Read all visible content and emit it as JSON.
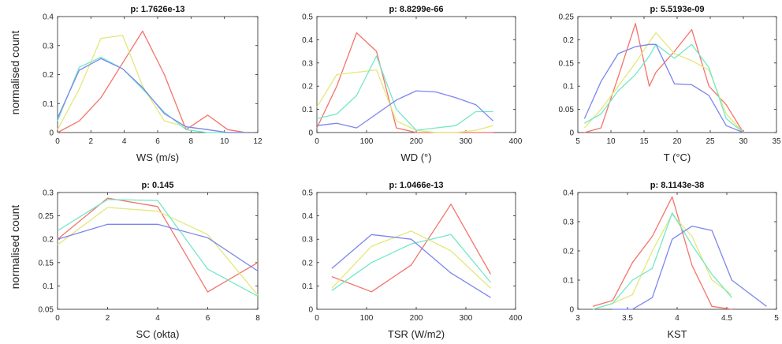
{
  "figure": {
    "ylabel": "normalised count"
  },
  "series_colors": [
    "#f4736a",
    "#e3e87a",
    "#72e8c8",
    "#7c86ee"
  ],
  "chart_data": [
    {
      "type": "line",
      "title": "p: 1.7626e-13",
      "xlabel": "WS (m/s)",
      "ylabel": "normalised count",
      "xlim": [
        0,
        12
      ],
      "ylim": [
        0,
        0.4
      ],
      "xticks": [
        0,
        2,
        4,
        6,
        8,
        10,
        12
      ],
      "yticks": [
        0,
        0.1,
        0.2,
        0.3,
        0.4
      ],
      "xtick_labels": [
        "0",
        "2",
        "4",
        "6",
        "8",
        "10",
        "12"
      ],
      "ytick_labels": [
        "0",
        "0.1",
        "0.2",
        "0.3",
        "0.4"
      ],
      "series": [
        {
          "x": [
            0,
            1.3,
            2.6,
            3.9,
            5.1,
            6.4,
            7.7,
            9.0,
            10.2,
            11.3
          ],
          "values": [
            0.0,
            0.04,
            0.12,
            0.24,
            0.35,
            0.2,
            0.01,
            0.06,
            0.01,
            0.0
          ]
        },
        {
          "x": [
            0,
            1.3,
            2.6,
            3.9,
            5.1,
            6.4,
            7.7,
            9.0,
            10.2,
            11.3
          ],
          "values": [
            0.01,
            0.15,
            0.325,
            0.335,
            0.16,
            0.04,
            0.02,
            0.01,
            0.0,
            0.0
          ]
        },
        {
          "x": [
            0,
            1.3,
            2.6,
            3.9,
            5.1,
            6.4,
            7.7,
            9.0,
            10.2,
            11.3
          ],
          "values": [
            0.04,
            0.225,
            0.26,
            0.22,
            0.15,
            0.07,
            0.01,
            0.0,
            0.0,
            0.0
          ]
        },
        {
          "x": [
            0,
            1.3,
            2.6,
            3.9,
            5.1,
            6.4,
            7.7,
            9.0,
            10.2,
            11.3
          ],
          "values": [
            0.05,
            0.215,
            0.255,
            0.22,
            0.155,
            0.065,
            0.02,
            0.01,
            0.0,
            0.0
          ]
        }
      ]
    },
    {
      "type": "line",
      "title": "p: 8.8299e-66",
      "xlabel": "WD (°)",
      "ylabel": "",
      "xlim": [
        0,
        400
      ],
      "ylim": [
        0,
        0.5
      ],
      "xticks": [
        0,
        100,
        200,
        300,
        400
      ],
      "yticks": [
        0,
        0.1,
        0.2,
        0.3,
        0.4,
        0.5
      ],
      "xtick_labels": [
        "0",
        "100",
        "200",
        "300",
        "400"
      ],
      "ytick_labels": [
        "0",
        "0.1",
        "0.2",
        "0.3",
        "0.4",
        "0.5"
      ],
      "series": [
        {
          "x": [
            0,
            40,
            80,
            120,
            160,
            200,
            240,
            280,
            320,
            355
          ],
          "values": [
            0.02,
            0.2,
            0.43,
            0.35,
            0.02,
            0.0,
            0.0,
            0.0,
            0.0,
            0.0
          ]
        },
        {
          "x": [
            0,
            40,
            80,
            120,
            160,
            200,
            240,
            280,
            320,
            355
          ],
          "values": [
            0.11,
            0.25,
            0.26,
            0.27,
            0.05,
            0.01,
            0.0,
            0.0,
            0.01,
            0.03
          ]
        },
        {
          "x": [
            0,
            40,
            80,
            120,
            160,
            200,
            240,
            280,
            320,
            355
          ],
          "values": [
            0.06,
            0.08,
            0.16,
            0.33,
            0.1,
            0.01,
            0.02,
            0.03,
            0.09,
            0.09
          ]
        },
        {
          "x": [
            0,
            40,
            80,
            120,
            160,
            200,
            240,
            280,
            320,
            355
          ],
          "values": [
            0.03,
            0.04,
            0.02,
            0.08,
            0.14,
            0.18,
            0.175,
            0.15,
            0.12,
            0.05
          ]
        }
      ]
    },
    {
      "type": "line",
      "title": "p: 5.5193e-09",
      "xlabel": "T (°C)",
      "ylabel": "",
      "xlim": [
        5,
        35
      ],
      "ylim": [
        0,
        0.25
      ],
      "xticks": [
        5,
        10,
        15,
        20,
        25,
        30,
        35
      ],
      "yticks": [
        0,
        0.05,
        0.1,
        0.15,
        0.2,
        0.25
      ],
      "xtick_labels": [
        "5",
        "10",
        "15",
        "20",
        "25",
        "30",
        "35"
      ],
      "ytick_labels": [
        "0",
        "0.05",
        "0.1",
        "0.15",
        "0.2",
        "0.25"
      ],
      "series": [
        {
          "x": [
            6.0,
            8.5,
            11.1,
            13.7,
            15.8,
            16.8,
            19.6,
            22.2,
            24.8,
            27.4,
            30.0
          ],
          "values": [
            0.0,
            0.01,
            0.12,
            0.235,
            0.1,
            0.13,
            0.175,
            0.222,
            0.1,
            0.06,
            0.0
          ]
        },
        {
          "x": [
            6.0,
            8.5,
            11.1,
            13.7,
            15.8,
            16.8,
            19.6,
            22.2,
            24.8,
            27.4,
            30.0
          ],
          "values": [
            0.01,
            0.05,
            0.1,
            0.15,
            0.195,
            0.215,
            0.17,
            0.155,
            0.135,
            0.04,
            0.0
          ]
        },
        {
          "x": [
            6.0,
            8.5,
            11.1,
            13.7,
            15.8,
            16.8,
            19.6,
            22.2,
            24.8,
            27.4,
            30.0
          ],
          "values": [
            0.02,
            0.04,
            0.09,
            0.125,
            0.165,
            0.19,
            0.16,
            0.19,
            0.14,
            0.03,
            0.0
          ]
        },
        {
          "x": [
            6.0,
            8.5,
            11.1,
            13.7,
            15.8,
            16.8,
            19.6,
            22.2,
            24.8,
            27.4,
            30.0
          ],
          "values": [
            0.03,
            0.11,
            0.17,
            0.185,
            0.19,
            0.19,
            0.105,
            0.103,
            0.08,
            0.015,
            0.0
          ]
        }
      ]
    },
    {
      "type": "line",
      "title": "p: 0.145",
      "xlabel": "SC (okta)",
      "ylabel": "normalised count",
      "xlim": [
        0,
        8
      ],
      "ylim": [
        0.05,
        0.3
      ],
      "xticks": [
        0,
        2,
        4,
        6,
        8
      ],
      "yticks": [
        0.05,
        0.1,
        0.15,
        0.2,
        0.25,
        0.3
      ],
      "xtick_labels": [
        "0",
        "2",
        "4",
        "6",
        "8"
      ],
      "ytick_labels": [
        "0.05",
        "0.1",
        "0.15",
        "0.2",
        "0.25",
        "0.3"
      ],
      "series": [
        {
          "x": [
            0,
            2,
            4,
            6,
            8
          ],
          "values": [
            0.2,
            0.288,
            0.27,
            0.087,
            0.15
          ]
        },
        {
          "x": [
            0,
            2,
            4,
            6,
            8
          ],
          "values": [
            0.188,
            0.268,
            0.26,
            0.21,
            0.08
          ]
        },
        {
          "x": [
            0,
            2,
            4,
            6,
            8
          ],
          "values": [
            0.218,
            0.285,
            0.283,
            0.136,
            0.078
          ]
        },
        {
          "x": [
            0,
            2,
            4,
            6,
            8
          ],
          "values": [
            0.2,
            0.232,
            0.232,
            0.203,
            0.132
          ]
        }
      ]
    },
    {
      "type": "line",
      "title": "p: 1.0466e-13",
      "xlabel": "TSR (W/m2)",
      "ylabel": "",
      "xlim": [
        0,
        400
      ],
      "ylim": [
        0,
        0.5
      ],
      "xticks": [
        0,
        100,
        200,
        300,
        400
      ],
      "yticks": [
        0,
        0.1,
        0.2,
        0.3,
        0.4,
        0.5
      ],
      "xtick_labels": [
        "0",
        "100",
        "200",
        "300",
        "400"
      ],
      "ytick_labels": [
        "0",
        "0.1",
        "0.2",
        "0.3",
        "0.4",
        "0.5"
      ],
      "series": [
        {
          "x": [
            30,
            110,
            190,
            270,
            350
          ],
          "values": [
            0.14,
            0.075,
            0.19,
            0.45,
            0.15
          ]
        },
        {
          "x": [
            30,
            110,
            190,
            270,
            350
          ],
          "values": [
            0.09,
            0.27,
            0.335,
            0.25,
            0.09
          ]
        },
        {
          "x": [
            30,
            110,
            190,
            270,
            350
          ],
          "values": [
            0.08,
            0.2,
            0.28,
            0.32,
            0.115
          ]
        },
        {
          "x": [
            30,
            110,
            190,
            270,
            350
          ],
          "values": [
            0.175,
            0.32,
            0.3,
            0.155,
            0.05
          ]
        }
      ]
    },
    {
      "type": "line",
      "title": "p: 8.1143e-38",
      "xlabel": "KST",
      "ylabel": "",
      "xlim": [
        3,
        5
      ],
      "ylim": [
        0,
        0.4
      ],
      "xticks": [
        3,
        3.5,
        4,
        4.5,
        5
      ],
      "yticks": [
        0,
        0.1,
        0.2,
        0.3,
        0.4
      ],
      "xtick_labels": [
        "3",
        "3.5",
        "4",
        "4.5",
        "5"
      ],
      "ytick_labels": [
        "0",
        "0.1",
        "0.2",
        "0.3",
        "0.4"
      ],
      "series": [
        {
          "x": [
            3.15,
            3.35,
            3.55,
            3.75,
            3.95,
            4.15,
            4.35,
            4.55
          ],
          "values": [
            0.01,
            0.03,
            0.16,
            0.25,
            0.385,
            0.15,
            0.01,
            0.0
          ]
        },
        {
          "x": [
            3.15,
            3.35,
            3.55,
            3.75,
            3.95,
            4.15,
            4.35,
            4.55
          ],
          "values": [
            0.0,
            0.02,
            0.05,
            0.2,
            0.325,
            0.25,
            0.1,
            0.05
          ]
        },
        {
          "x": [
            3.15,
            3.35,
            3.55,
            3.75,
            3.95,
            4.15,
            4.35,
            4.55
          ],
          "values": [
            0.0,
            0.02,
            0.1,
            0.14,
            0.33,
            0.22,
            0.12,
            0.04
          ]
        },
        {
          "x": [
            3.35,
            3.55,
            3.75,
            3.95,
            4.15,
            4.35,
            4.55,
            4.9
          ],
          "values": [
            0.0,
            0.0,
            0.04,
            0.24,
            0.285,
            0.27,
            0.1,
            0.01
          ]
        }
      ]
    }
  ]
}
